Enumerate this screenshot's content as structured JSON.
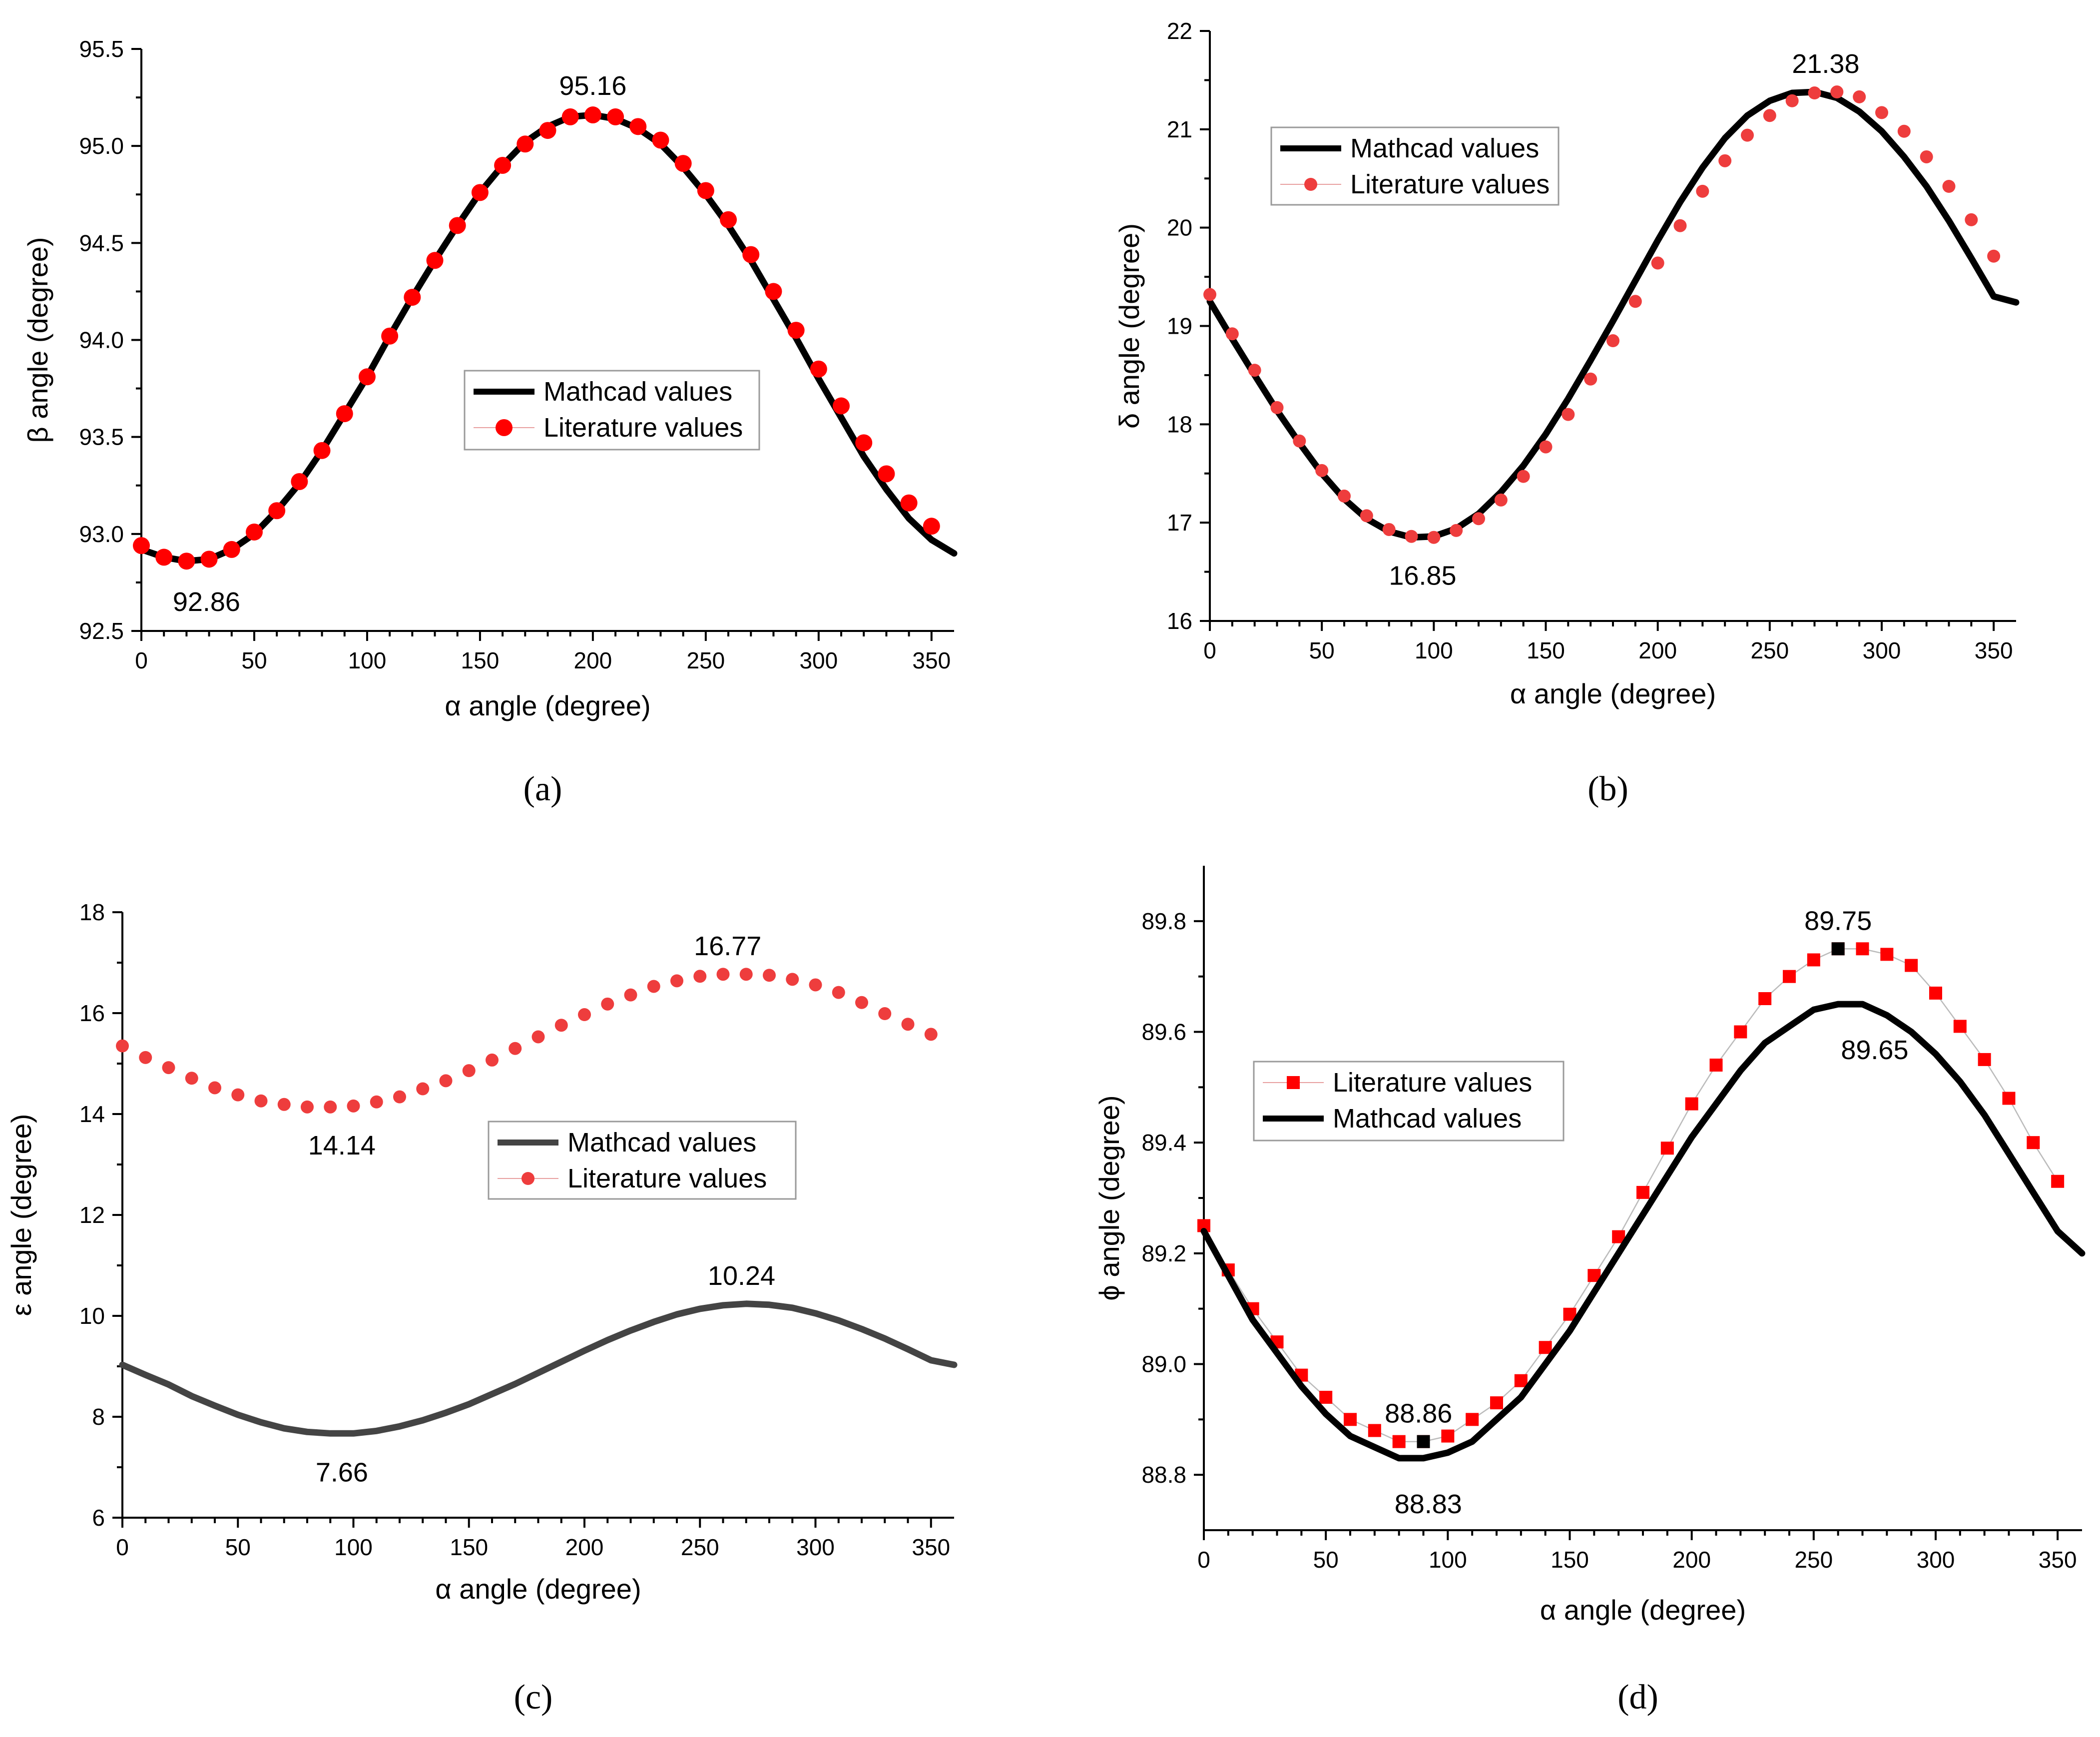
{
  "figure": {
    "panel_labels": [
      "(a)",
      "(b)",
      "(c)",
      "(d)"
    ]
  },
  "chart_data": [
    {
      "type": "line",
      "panel": "a",
      "xlabel": "α angle (degree)",
      "ylabel": "β angle (degree)",
      "xlim": [
        0,
        360
      ],
      "ylim": [
        92.5,
        95.5
      ],
      "xticks": [
        0,
        50,
        100,
        150,
        200,
        250,
        300,
        350
      ],
      "yticks": [
        92.5,
        93.0,
        93.5,
        94.0,
        94.5,
        95.0,
        95.5
      ],
      "ytick_labels": [
        "92.5",
        "93.0",
        "93.5",
        "94.0",
        "94.5",
        "95.0",
        "95.5"
      ],
      "legend_position": "center",
      "series": [
        {
          "name": "Mathcad values",
          "kind": "line",
          "color": "#000000",
          "x": [
            0,
            10,
            20,
            30,
            40,
            50,
            60,
            70,
            80,
            90,
            100,
            110,
            120,
            130,
            140,
            150,
            160,
            170,
            180,
            190,
            200,
            210,
            220,
            230,
            240,
            250,
            260,
            270,
            280,
            290,
            300,
            310,
            320,
            330,
            340,
            350,
            360
          ],
          "values": [
            92.92,
            92.88,
            92.86,
            92.87,
            92.92,
            93.0,
            93.12,
            93.26,
            93.43,
            93.62,
            93.81,
            94.02,
            94.22,
            94.41,
            94.59,
            94.76,
            94.9,
            95.02,
            95.1,
            95.15,
            95.16,
            95.14,
            95.09,
            95.01,
            94.89,
            94.75,
            94.59,
            94.41,
            94.21,
            94.01,
            93.8,
            93.6,
            93.4,
            93.23,
            93.08,
            92.97,
            92.9
          ]
        },
        {
          "name": "Literature values",
          "kind": "marker",
          "marker": "circle",
          "color": "#ff0000",
          "x": [
            0,
            10,
            20,
            30,
            40,
            50,
            60,
            70,
            80,
            90,
            100,
            110,
            120,
            130,
            140,
            150,
            160,
            170,
            180,
            190,
            200,
            210,
            220,
            230,
            240,
            250,
            260,
            270,
            280,
            290,
            300,
            310,
            320,
            330,
            340,
            350
          ],
          "values": [
            92.94,
            92.88,
            92.86,
            92.87,
            92.92,
            93.01,
            93.12,
            93.27,
            93.43,
            93.62,
            93.81,
            94.02,
            94.22,
            94.41,
            94.59,
            94.76,
            94.9,
            95.01,
            95.08,
            95.15,
            95.16,
            95.15,
            95.1,
            95.03,
            94.91,
            94.77,
            94.62,
            94.44,
            94.25,
            94.05,
            93.85,
            93.66,
            93.47,
            93.31,
            93.16,
            93.04
          ]
        }
      ],
      "annotations": [
        {
          "text": "95.16",
          "x": 200,
          "y": 95.16,
          "position": "above"
        },
        {
          "text": "92.86",
          "x": 20,
          "y": 92.86,
          "position": "below"
        }
      ]
    },
    {
      "type": "line",
      "panel": "b",
      "xlabel": "α angle (degree)",
      "ylabel": "δ angle (degree)",
      "xlim": [
        0,
        360
      ],
      "ylim": [
        16,
        22
      ],
      "xticks": [
        0,
        50,
        100,
        150,
        200,
        250,
        300,
        350
      ],
      "yticks": [
        16,
        17,
        18,
        19,
        20,
        21,
        22
      ],
      "ytick_labels": [
        "16",
        "17",
        "18",
        "19",
        "20",
        "21",
        "22"
      ],
      "legend_position": "top-left",
      "series": [
        {
          "name": "Mathcad values",
          "kind": "line",
          "color": "#000000",
          "x": [
            0,
            10,
            20,
            30,
            40,
            50,
            60,
            70,
            80,
            90,
            100,
            110,
            120,
            130,
            140,
            150,
            160,
            170,
            180,
            190,
            200,
            210,
            220,
            230,
            240,
            250,
            260,
            270,
            280,
            290,
            300,
            310,
            320,
            330,
            340,
            350,
            360
          ],
          "values": [
            19.25,
            18.87,
            18.5,
            18.14,
            17.81,
            17.5,
            17.24,
            17.04,
            16.91,
            16.85,
            16.86,
            16.94,
            17.09,
            17.31,
            17.58,
            17.9,
            18.26,
            18.65,
            19.05,
            19.46,
            19.87,
            20.26,
            20.61,
            20.91,
            21.14,
            21.29,
            21.37,
            21.38,
            21.32,
            21.18,
            20.98,
            20.72,
            20.42,
            20.07,
            19.69,
            19.3,
            19.24
          ]
        },
        {
          "name": "Literature values",
          "kind": "marker",
          "marker": "circle",
          "color": "#ee3d3d",
          "x": [
            0,
            10,
            20,
            30,
            40,
            50,
            60,
            70,
            80,
            90,
            100,
            110,
            120,
            130,
            140,
            150,
            160,
            170,
            180,
            190,
            200,
            210,
            220,
            230,
            240,
            250,
            260,
            270,
            280,
            290,
            300,
            310,
            320,
            330,
            340,
            350
          ],
          "values": [
            19.32,
            18.92,
            18.55,
            18.17,
            17.83,
            17.53,
            17.27,
            17.07,
            16.93,
            16.86,
            16.85,
            16.92,
            17.04,
            17.23,
            17.47,
            17.77,
            18.1,
            18.46,
            18.85,
            19.25,
            19.64,
            20.02,
            20.37,
            20.68,
            20.94,
            21.14,
            21.29,
            21.37,
            21.38,
            21.33,
            21.17,
            20.98,
            20.72,
            20.42,
            20.08,
            19.71
          ]
        }
      ],
      "annotations": [
        {
          "text": "21.38",
          "x": 275,
          "y": 21.38,
          "position": "above"
        },
        {
          "text": "16.85",
          "x": 95,
          "y": 16.85,
          "position": "below"
        }
      ]
    },
    {
      "type": "line",
      "panel": "c",
      "xlabel": "α angle (degree)",
      "ylabel": "ε angle (degree)",
      "xlim": [
        0,
        360
      ],
      "ylim": [
        6,
        18
      ],
      "xticks": [
        0,
        50,
        100,
        150,
        200,
        250,
        300,
        350
      ],
      "yticks": [
        6,
        8,
        10,
        12,
        14,
        16,
        18
      ],
      "ytick_labels": [
        "6",
        "8",
        "10",
        "12",
        "14",
        "16",
        "18"
      ],
      "legend_position": "center",
      "series": [
        {
          "name": "Mathcad values",
          "kind": "line",
          "color": "#444444",
          "x": [
            0,
            10,
            20,
            30,
            40,
            50,
            60,
            70,
            80,
            90,
            100,
            110,
            120,
            130,
            140,
            150,
            160,
            170,
            180,
            190,
            200,
            210,
            220,
            230,
            240,
            250,
            260,
            270,
            280,
            290,
            300,
            310,
            320,
            330,
            340,
            350,
            360
          ],
          "values": [
            9.03,
            8.83,
            8.64,
            8.41,
            8.22,
            8.04,
            7.89,
            7.77,
            7.7,
            7.67,
            7.67,
            7.72,
            7.81,
            7.93,
            8.08,
            8.25,
            8.45,
            8.65,
            8.87,
            9.09,
            9.31,
            9.52,
            9.71,
            9.88,
            10.03,
            10.14,
            10.21,
            10.24,
            10.22,
            10.16,
            10.05,
            9.91,
            9.74,
            9.55,
            9.34,
            9.12,
            9.03
          ]
        },
        {
          "name": "Literature values",
          "kind": "marker",
          "marker": "circle",
          "color": "#ee3d3d",
          "x": [
            0,
            10,
            20,
            30,
            40,
            50,
            60,
            70,
            80,
            90,
            100,
            110,
            120,
            130,
            140,
            150,
            160,
            170,
            180,
            190,
            200,
            210,
            220,
            230,
            240,
            250,
            260,
            270,
            280,
            290,
            300,
            310,
            320,
            330,
            340,
            350
          ],
          "values": [
            15.35,
            15.12,
            14.92,
            14.71,
            14.52,
            14.38,
            14.26,
            14.19,
            14.14,
            14.14,
            14.16,
            14.24,
            14.34,
            14.5,
            14.66,
            14.86,
            15.07,
            15.3,
            15.53,
            15.76,
            15.97,
            16.18,
            16.36,
            16.53,
            16.64,
            16.73,
            16.77,
            16.77,
            16.75,
            16.67,
            16.56,
            16.41,
            16.21,
            15.99,
            15.78,
            15.58
          ]
        }
      ],
      "annotations": [
        {
          "text": "16.77",
          "x": 262,
          "y": 16.77,
          "position": "above"
        },
        {
          "text": "14.14",
          "x": 95,
          "y": 14.14,
          "position": "below"
        },
        {
          "text": "10.24",
          "x": 268,
          "y": 10.24,
          "position": "above"
        },
        {
          "text": "7.66",
          "x": 95,
          "y": 7.66,
          "position": "below"
        }
      ]
    },
    {
      "type": "line",
      "panel": "d",
      "xlabel": "α angle (degree)",
      "ylabel": "ϕ angle (degree)",
      "xlim": [
        0,
        360
      ],
      "ylim": [
        88.7,
        89.9
      ],
      "xticks": [
        0,
        50,
        100,
        150,
        200,
        250,
        300,
        350
      ],
      "yticks": [
        88.8,
        89.0,
        89.2,
        89.4,
        89.6,
        89.8
      ],
      "ytick_labels": [
        "88.8",
        "89.0",
        "89.2",
        "89.4",
        "89.6",
        "89.8"
      ],
      "legend_position": "center-left",
      "series": [
        {
          "name": "Literature values",
          "kind": "marker-line",
          "marker": "square",
          "color": "#ff0000",
          "line_color": "#bbbbbb",
          "x": [
            0,
            10,
            20,
            30,
            40,
            50,
            60,
            70,
            80,
            90,
            100,
            110,
            120,
            130,
            140,
            150,
            160,
            170,
            180,
            190,
            200,
            210,
            220,
            230,
            240,
            250,
            260,
            270,
            280,
            290,
            300,
            310,
            320,
            330,
            340,
            350
          ],
          "values": [
            89.25,
            89.17,
            89.1,
            89.04,
            88.98,
            88.94,
            88.9,
            88.88,
            88.86,
            88.86,
            88.87,
            88.9,
            88.93,
            88.97,
            89.03,
            89.09,
            89.16,
            89.23,
            89.31,
            89.39,
            89.47,
            89.54,
            89.6,
            89.66,
            89.7,
            89.73,
            89.75,
            89.75,
            89.74,
            89.72,
            89.67,
            89.61,
            89.55,
            89.48,
            89.4,
            89.33
          ]
        },
        {
          "name": "Mathcad values",
          "kind": "line",
          "color": "#000000",
          "x": [
            0,
            10,
            20,
            30,
            40,
            50,
            60,
            70,
            80,
            90,
            100,
            110,
            120,
            130,
            140,
            150,
            160,
            170,
            180,
            190,
            200,
            210,
            220,
            230,
            240,
            250,
            260,
            270,
            280,
            290,
            300,
            310,
            320,
            330,
            340,
            350,
            360
          ],
          "values": [
            89.24,
            89.16,
            89.08,
            89.02,
            88.96,
            88.91,
            88.87,
            88.85,
            88.83,
            88.83,
            88.84,
            88.86,
            88.9,
            88.94,
            89.0,
            89.06,
            89.13,
            89.2,
            89.27,
            89.34,
            89.41,
            89.47,
            89.53,
            89.58,
            89.61,
            89.64,
            89.65,
            89.65,
            89.63,
            89.6,
            89.56,
            89.51,
            89.45,
            89.38,
            89.31,
            89.24,
            89.2
          ]
        }
      ],
      "highlight_points": [
        {
          "x": 90,
          "y": 88.86,
          "color": "#000000"
        },
        {
          "x": 260,
          "y": 89.75,
          "color": "#000000"
        }
      ],
      "annotations": [
        {
          "text": "89.75",
          "x": 260,
          "y": 89.75,
          "position": "above"
        },
        {
          "text": "89.65",
          "x": 275,
          "y": 89.65,
          "position": "below"
        },
        {
          "text": "88.86",
          "x": 88,
          "y": 88.86,
          "position": "above"
        },
        {
          "text": "88.83",
          "x": 92,
          "y": 88.83,
          "position": "below"
        }
      ]
    }
  ]
}
